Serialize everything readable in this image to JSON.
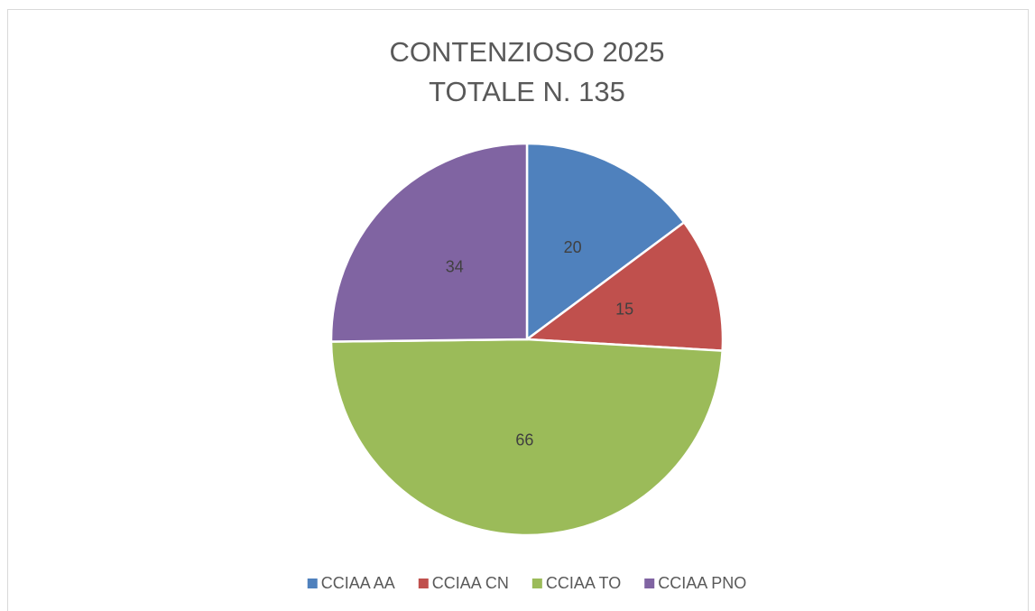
{
  "chart_data": {
    "type": "pie",
    "title": "CONTENZIOSO 2025",
    "subtitle": "TOTALE N. 135",
    "categories": [
      "CCIAA AA",
      "CCIAA CN",
      "CCIAA TO",
      "CCIAA PNO"
    ],
    "values": [
      20,
      15,
      66,
      34
    ],
    "colors": [
      "#4f81bd",
      "#c0504d",
      "#9bbb59",
      "#8064a2"
    ],
    "legend": "bottom"
  }
}
